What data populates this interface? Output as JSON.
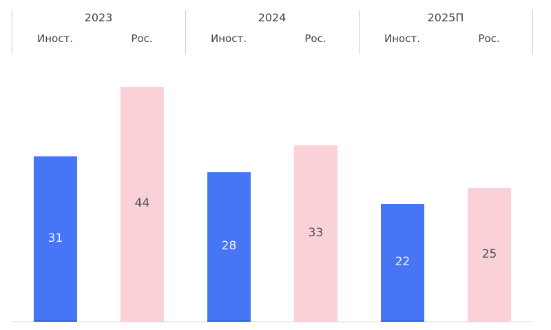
{
  "chart_data": {
    "type": "bar",
    "title": "",
    "categories": [
      "2023",
      "2024",
      "2025П"
    ],
    "column_headers": [
      "Иност.",
      "Рос."
    ],
    "series": [
      {
        "key": "foreign",
        "name": "Иност.",
        "values": [
          31,
          28,
          22
        ],
        "bar_color": "#4676f6",
        "bar_bottom_edge_color": "#2e62e5",
        "value_label_color": "#eef2fc"
      },
      {
        "key": "russian",
        "name": "Рос.",
        "values": [
          44,
          33,
          25
        ],
        "bar_color": "#fad1d6",
        "bar_bottom_edge_color": "#fad1d6",
        "value_label_color": "#4d525a"
      }
    ],
    "ylim": [
      0,
      50
    ],
    "grid": false,
    "legend_position": "column-headers-top",
    "value_labels": "inside-center",
    "axis_line_color": "#ebebec",
    "divider_color": "#cbcbcb",
    "header_text_color": "#3d4147"
  }
}
